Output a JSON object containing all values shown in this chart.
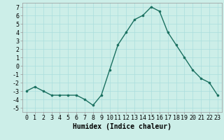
{
  "x": [
    0,
    1,
    2,
    3,
    4,
    5,
    6,
    7,
    8,
    9,
    10,
    11,
    12,
    13,
    14,
    15,
    16,
    17,
    18,
    19,
    20,
    21,
    22,
    23
  ],
  "y": [
    -3,
    -2.5,
    -3,
    -3.5,
    -3.5,
    -3.5,
    -3.5,
    -4,
    -4.7,
    -3.5,
    -0.5,
    2.5,
    4,
    5.5,
    6,
    7,
    6.5,
    4,
    2.5,
    1,
    -0.5,
    -1.5,
    -2,
    -3.5
  ],
  "line_color": "#1a7060",
  "marker_color": "#1a7060",
  "bg_color": "#cceee8",
  "grid_color": "#aadddd",
  "xlabel": "Humidex (Indice chaleur)",
  "ylim": [
    -5.5,
    7.5
  ],
  "xlim": [
    -0.5,
    23.5
  ],
  "yticks": [
    -5,
    -4,
    -3,
    -2,
    -1,
    0,
    1,
    2,
    3,
    4,
    5,
    6,
    7
  ],
  "xticks": [
    0,
    1,
    2,
    3,
    4,
    5,
    6,
    7,
    8,
    9,
    10,
    11,
    12,
    13,
    14,
    15,
    16,
    17,
    18,
    19,
    20,
    21,
    22,
    23
  ],
  "tick_fontsize": 6,
  "xlabel_fontsize": 7,
  "linewidth": 1.0,
  "markersize": 2.2
}
